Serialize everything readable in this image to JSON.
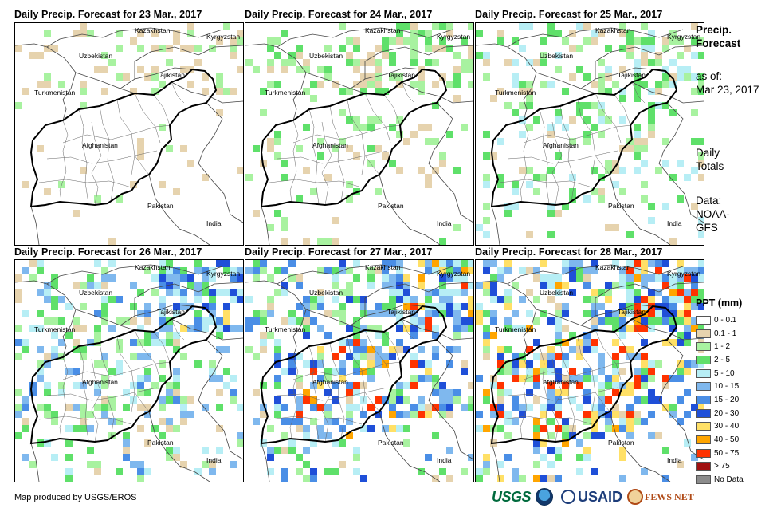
{
  "panels": [
    {
      "title": "Daily Precip. Forecast for 23 Mar., 2017",
      "intensity": 0
    },
    {
      "title": "Daily Precip. Forecast for 24 Mar., 2017",
      "intensity": 1
    },
    {
      "title": "Daily Precip. Forecast for 25 Mar., 2017",
      "intensity": 2
    },
    {
      "title": "Daily Precip. Forecast for 26 Mar., 2017",
      "intensity": 3
    },
    {
      "title": "Daily Precip. Forecast for 27 Mar., 2017",
      "intensity": 4
    },
    {
      "title": "Daily Precip. Forecast for 28 Mar., 2017",
      "intensity": 5
    }
  ],
  "map_labels": {
    "kazakhstan": "Kazakhstan",
    "kyrgyzstan": "Kyrgyzstan",
    "uzbekistan": "Uzbekistan",
    "tajikistan": "Tajikistan",
    "turkmenistan": "Turkmenistan",
    "afghanistan": "Afghanistan",
    "pakistan": "Pakistan",
    "india": "India"
  },
  "side": {
    "title_line1": "Precip.",
    "title_line2": "Forecast",
    "asof_line1": "as of:",
    "asof_line2": "Mar 23, 2017",
    "daily_line1": "Daily",
    "daily_line2": "Totals",
    "data_line1": "Data:",
    "data_line2": "NOAA-",
    "data_line3": "GFS"
  },
  "legend": {
    "title": "PPT (mm)",
    "items": [
      {
        "label": "0 - 0.1",
        "color": "#ffffff"
      },
      {
        "label": "0.1 - 1",
        "color": "#e6d3ae"
      },
      {
        "label": "1 - 2",
        "color": "#a8f2a0"
      },
      {
        "label": "2 - 5",
        "color": "#5fe06a"
      },
      {
        "label": "5 - 10",
        "color": "#b7eef5"
      },
      {
        "label": "10 - 15",
        "color": "#7fb8ee"
      },
      {
        "label": "15 - 20",
        "color": "#4a8ee6"
      },
      {
        "label": "20 - 30",
        "color": "#1f4fd8"
      },
      {
        "label": "30 - 40",
        "color": "#ffe066"
      },
      {
        "label": "40 - 50",
        "color": "#ffa500"
      },
      {
        "label": "50 - 75",
        "color": "#ff3300"
      },
      {
        "label": "> 75",
        "color": "#a01010"
      },
      {
        "label": "No Data",
        "color": "#8c8c8c"
      }
    ]
  },
  "credit": "Map produced by USGS/EROS",
  "logos": {
    "usgs": "USGS",
    "usaid": "USAID",
    "fews": "FEWS NET"
  }
}
